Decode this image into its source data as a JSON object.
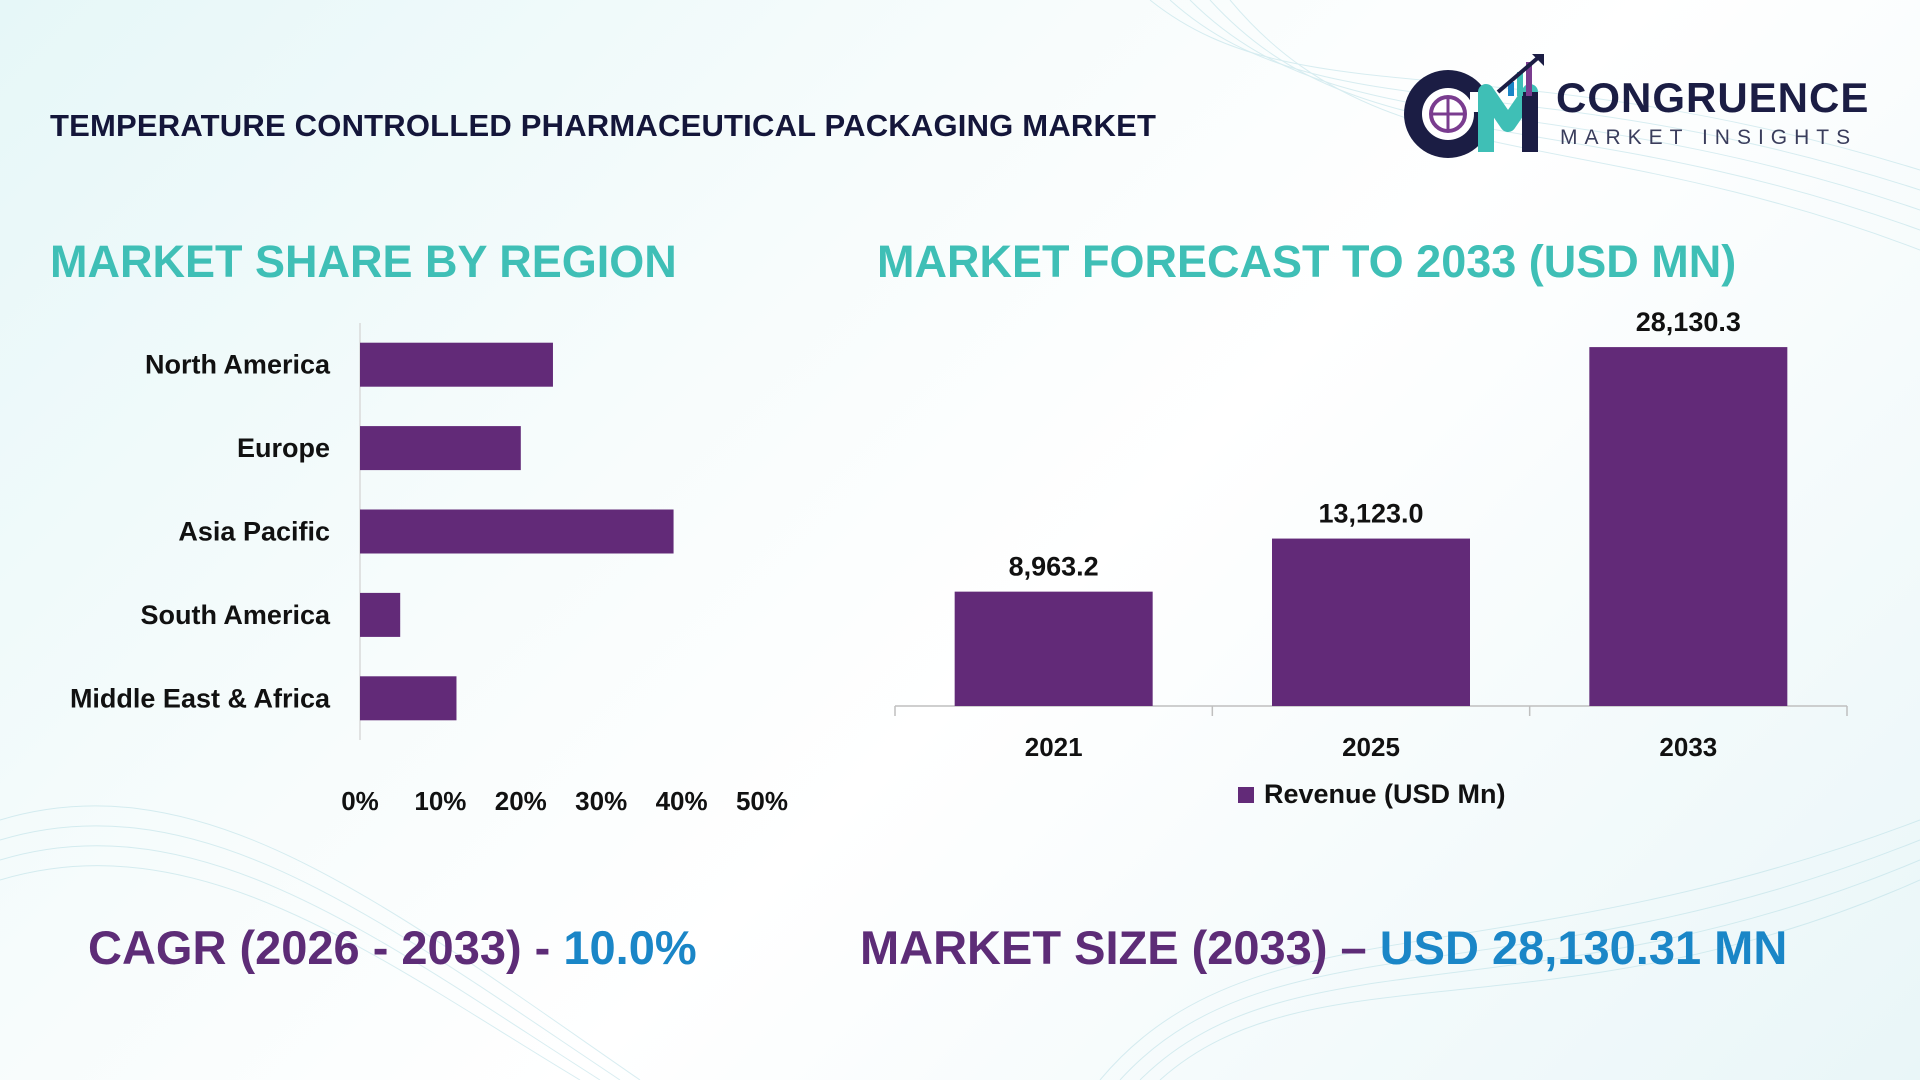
{
  "header": {
    "title": "TEMPERATURE CONTROLLED PHARMACEUTICAL PACKAGING MARKET"
  },
  "logo": {
    "name": "CONGRUENCE",
    "tagline": "MARKET INSIGHTS"
  },
  "colors": {
    "bar": "#622a78",
    "section_title": "#3fbfb6",
    "kpi_label": "#5d2c77",
    "kpi_value": "#1a86c7",
    "header_text": "#14163a"
  },
  "chart_data": [
    {
      "type": "bar",
      "orientation": "horizontal",
      "title": "MARKET SHARE BY REGION",
      "categories": [
        "North America",
        "Europe",
        "Asia Pacific",
        "South America",
        "Middle East & Africa"
      ],
      "values": [
        24,
        20,
        39,
        5,
        12
      ],
      "unit": "%",
      "xlim": [
        0,
        50
      ],
      "xticks": [
        "0%",
        "10%",
        "20%",
        "30%",
        "40%",
        "50%"
      ],
      "grid": false,
      "legend": "none"
    },
    {
      "type": "bar",
      "orientation": "vertical",
      "title": "MARKET FORECAST TO 2033 (USD MN)",
      "categories": [
        "2021",
        "2025",
        "2033"
      ],
      "series": [
        {
          "name": "Revenue (USD Mn)",
          "values": [
            8963.2,
            13123.0,
            28130.3
          ],
          "labels": [
            "8,963.2",
            "13,123.0",
            "28,130.3"
          ]
        }
      ],
      "ylim": [
        0,
        29000
      ],
      "grid": false,
      "legend": "bottom"
    }
  ],
  "kpis": {
    "cagr_label": "CAGR (2026 - 2033) - ",
    "cagr_value": "10.0%",
    "size_label": "MARKET SIZE (2033) – ",
    "size_value": "USD 28,130.31 MN"
  }
}
